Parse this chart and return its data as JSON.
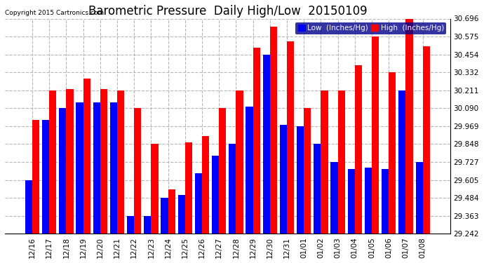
{
  "title": "Barometric Pressure  Daily High/Low  20150109",
  "copyright": "Copyright 2015 Cartronics.com",
  "legend_low": "Low  (Inches/Hg)",
  "legend_high": "High  (Inches/Hg)",
  "dates": [
    "12/16",
    "12/17",
    "12/18",
    "12/19",
    "12/20",
    "12/21",
    "12/22",
    "12/23",
    "12/24",
    "12/25",
    "12/26",
    "12/27",
    "12/28",
    "12/29",
    "12/30",
    "12/31",
    "01/01",
    "01/02",
    "01/03",
    "01/04",
    "01/05",
    "01/06",
    "01/07",
    "01/08"
  ],
  "low_values": [
    29.605,
    30.01,
    30.09,
    30.13,
    30.13,
    30.13,
    29.363,
    29.363,
    29.484,
    29.505,
    29.65,
    29.77,
    29.848,
    30.1,
    30.454,
    29.98,
    29.969,
    29.848,
    29.727,
    29.68,
    29.69,
    29.68,
    30.211,
    29.727
  ],
  "high_values": [
    30.01,
    30.211,
    30.22,
    30.29,
    30.22,
    30.211,
    30.09,
    29.848,
    29.54,
    29.86,
    29.9,
    30.09,
    30.211,
    30.5,
    30.64,
    30.54,
    30.09,
    30.211,
    30.211,
    30.38,
    30.575,
    30.332,
    30.696,
    30.51
  ],
  "ylim_min": 29.242,
  "ylim_max": 30.696,
  "yticks": [
    29.242,
    29.363,
    29.484,
    29.605,
    29.727,
    29.848,
    29.969,
    30.09,
    30.211,
    30.332,
    30.454,
    30.575,
    30.696
  ],
  "bar_color_low": "#0000ff",
  "bar_color_high": "#ff0000",
  "bg_color": "#ffffff",
  "grid_color": "#b0b0b0",
  "title_fontsize": 12,
  "tick_fontsize": 7.5,
  "label_fontsize": 7.5,
  "legend_bg": "#00008b"
}
